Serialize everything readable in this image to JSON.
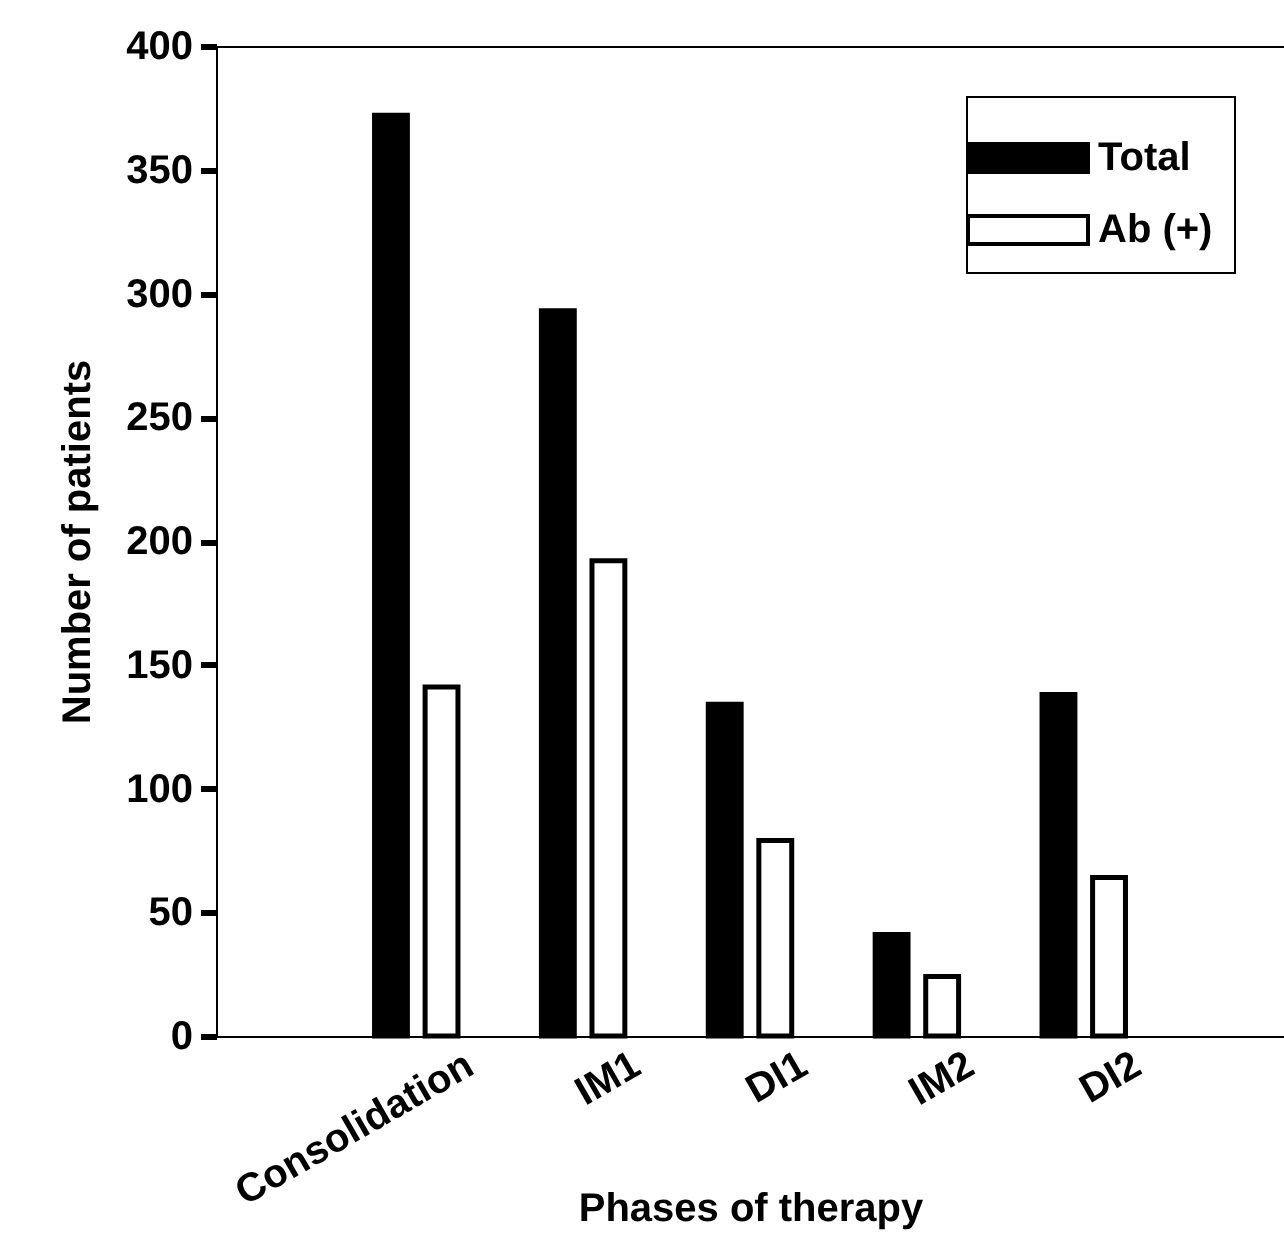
{
  "chart_data": {
    "type": "bar",
    "xlabel": "Phases of therapy",
    "ylabel": "Number of patients",
    "categories": [
      "Consolidation",
      "IM1",
      "DI1",
      "IM2",
      "DI2"
    ],
    "series": [
      {
        "name": "Total",
        "color": "#000000",
        "values": [
          372,
          293,
          134,
          41,
          138
        ]
      },
      {
        "name": "Ab (+)",
        "color": "#ffffff",
        "values": [
          141,
          192,
          79,
          24,
          64
        ]
      }
    ],
    "ylim": [
      0,
      400
    ],
    "yticks": [
      0,
      50,
      100,
      150,
      200,
      250,
      300,
      350,
      400
    ],
    "grid": false,
    "legend": "top right"
  }
}
